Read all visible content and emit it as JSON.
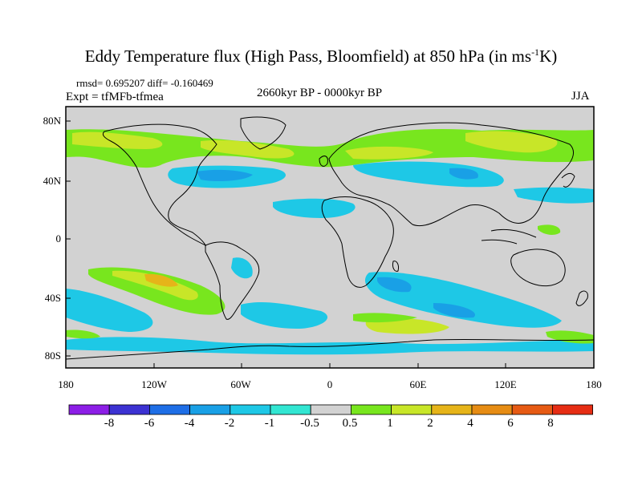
{
  "title": {
    "main": "Eddy Temperature flux (High Pass, Bloomfield) at 850 hPa (in ms",
    "sup": "-1",
    "end": "K)"
  },
  "stats": {
    "rmsd_line": "rmsd= 0.695207 diff= -0.160469",
    "expt_line": "Expt = tfMFb-tfmea"
  },
  "period": "2660kyr BP - 0000kyr BP",
  "season": "JJA",
  "axes": {
    "lat_ticks": [
      "80N",
      "40N",
      "0",
      "40S",
      "80S"
    ],
    "lon_ticks": [
      "180",
      "120W",
      "60W",
      "0",
      "60E",
      "120E",
      "180"
    ]
  },
  "colorbar": {
    "labels": [
      "-8",
      "-6",
      "-4",
      "-2",
      "-1",
      "-0.5",
      "0.5",
      "1",
      "2",
      "4",
      "6",
      "8"
    ],
    "colors": [
      "#8c1ee6",
      "#3c32d2",
      "#1e6ee6",
      "#19a0e6",
      "#1ec8e6",
      "#32e6d2",
      "#d2d2d2",
      "#78e61e",
      "#c8e628",
      "#e6b419",
      "#e68c14",
      "#e65a14",
      "#e62d14"
    ]
  },
  "map": {
    "background": "#d2d2d2",
    "palette": {
      "neg1": "#1ec8e6",
      "neg2": "#19a0e6",
      "neg05": "#32e6d2",
      "pos05": "#78e61e",
      "pos1": "#c8e628",
      "pos2": "#e6b419",
      "pos4": "#e68c14"
    }
  }
}
